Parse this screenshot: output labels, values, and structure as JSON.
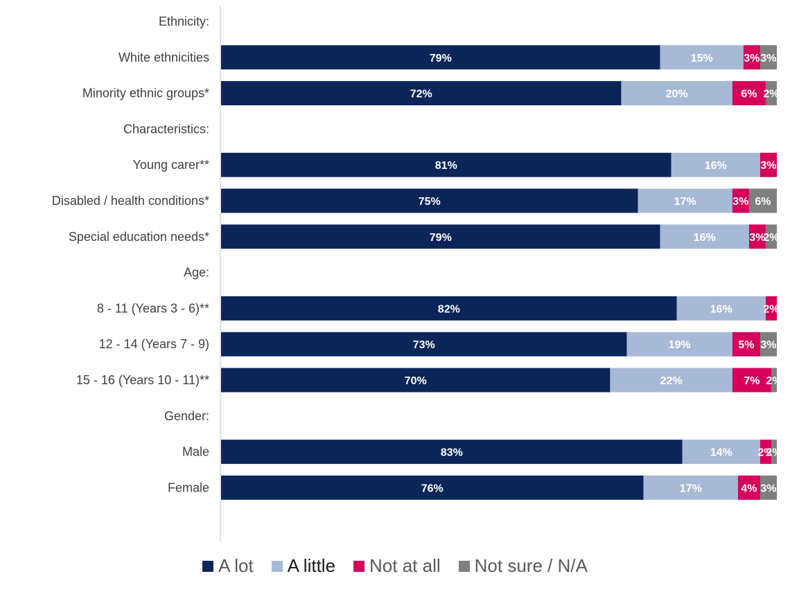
{
  "chart_data": {
    "type": "bar",
    "orientation": "horizontal",
    "stacked": true,
    "categories": [
      "Ethnicity:",
      "White ethnicities",
      "Minority ethnic groups*",
      "Characteristics:",
      "Young carer**",
      "Disabled / health conditions*",
      "Special education needs*",
      "Age:",
      "8 - 11 (Years 3 - 6)**",
      "12 - 14 (Years 7 - 9)",
      "15 - 16 (Years 10 - 11)**",
      "Gender:",
      "Male",
      "Female"
    ],
    "series": [
      {
        "name": "A lot",
        "color": "#0b2559",
        "label_color": "#ffffff",
        "values": [
          null,
          79,
          72,
          null,
          81,
          75,
          79,
          null,
          82,
          73,
          70,
          null,
          83,
          76
        ]
      },
      {
        "name": "A little",
        "color": "#a8b9d6",
        "label_color": "#ffffff",
        "values": [
          null,
          15,
          20,
          null,
          16,
          17,
          16,
          null,
          16,
          19,
          22,
          null,
          14,
          17
        ]
      },
      {
        "name": "Not at all",
        "color": "#d6005b",
        "label_color": "#ffffff",
        "values": [
          null,
          3,
          6,
          null,
          3,
          3,
          3,
          null,
          2,
          5,
          7,
          null,
          2,
          4
        ]
      },
      {
        "name": "Not sure / N/A",
        "color": "#7f7f7f",
        "label_color": "#ffffff",
        "values": [
          null,
          3,
          2,
          null,
          0,
          6,
          2,
          null,
          0,
          3,
          2,
          null,
          2,
          3
        ]
      }
    ],
    "xlim": [
      0,
      100
    ],
    "value_suffix": "%",
    "grid": false,
    "legend": "bottom-center"
  }
}
